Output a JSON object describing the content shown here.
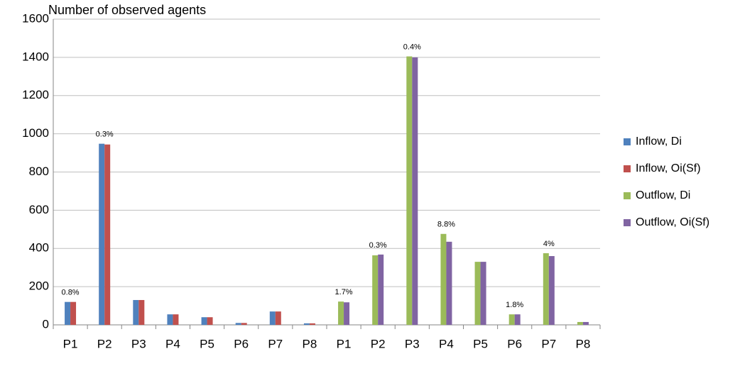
{
  "chart_data": {
    "type": "bar",
    "title": "Number of observed agents",
    "categories": [
      "P1",
      "P2",
      "P3",
      "P4",
      "P5",
      "P6",
      "P7",
      "P8",
      "P1",
      "P2",
      "P3",
      "P4",
      "P5",
      "P6",
      "P7",
      "P8"
    ],
    "series": [
      {
        "name": "Inflow, Di",
        "color": "#4f81bd",
        "values": [
          120,
          948,
          130,
          55,
          40,
          10,
          70,
          8,
          null,
          null,
          null,
          null,
          null,
          null,
          null,
          null
        ]
      },
      {
        "name": "Inflow, Oi(Sf)",
        "color": "#c0504d",
        "values": [
          120,
          944,
          130,
          55,
          40,
          10,
          70,
          8,
          null,
          null,
          null,
          null,
          null,
          null,
          null,
          null
        ]
      },
      {
        "name": "Outflow, Di",
        "color": "#9bbb59",
        "values": [
          null,
          null,
          null,
          null,
          null,
          null,
          null,
          null,
          122,
          364,
          1405,
          476,
          330,
          55,
          375,
          15
        ]
      },
      {
        "name": "Outflow, Oi(Sf)",
        "color": "#8064a2",
        "values": [
          null,
          null,
          null,
          null,
          null,
          null,
          null,
          null,
          118,
          368,
          1400,
          435,
          330,
          55,
          360,
          15
        ]
      }
    ],
    "annotations": [
      "0.8%",
      "0.3%",
      null,
      null,
      null,
      null,
      null,
      null,
      "1.7%",
      "0.3%",
      "0.4%",
      "8.8%",
      null,
      "1.8%",
      "4%",
      null
    ],
    "ylim": [
      0,
      1600
    ],
    "yticks": [
      0,
      200,
      400,
      600,
      800,
      1000,
      1200,
      1400,
      1600
    ],
    "grid": true,
    "legend": "right"
  }
}
